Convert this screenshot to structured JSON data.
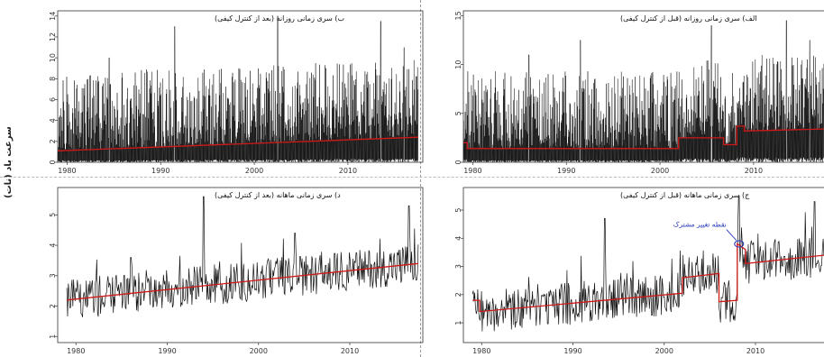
{
  "y_axis_label": "سرعت باد (نات)",
  "chart_data": [
    {
      "id": "b",
      "type": "line",
      "title": "ب) سری زمانی روزانه (بعد از کنترل کیفی)",
      "x_ticks": [
        1980,
        1990,
        2000,
        2010
      ],
      "y_ticks": [
        0,
        2,
        4,
        6,
        8,
        10,
        12,
        14
      ],
      "xlim": [
        1979,
        2018
      ],
      "ylim": [
        0,
        14.5
      ],
      "noise": {
        "base": 1.6,
        "amp": 3.4,
        "max": 14,
        "peaks": [
          [
            1984.5,
            10
          ],
          [
            1991.5,
            13
          ],
          [
            2002.5,
            14
          ],
          [
            2013.5,
            13.5
          ],
          [
            2016,
            11
          ]
        ]
      },
      "trend": {
        "x": [
          1979,
          2017.5
        ],
        "y": [
          1.1,
          2.4
        ]
      }
    },
    {
      "id": "alef",
      "type": "line",
      "title": "الف) سری زمانی روزانه (قبل از کنترل کیفی)",
      "x_ticks": [
        1980,
        1990,
        2000,
        2010
      ],
      "y_ticks": [
        0,
        5,
        10,
        15
      ],
      "xlim": [
        1979,
        2018
      ],
      "ylim": [
        0,
        15.5
      ],
      "noise": {
        "base": 1.6,
        "amp": 3.6,
        "max": 14.5,
        "peaks": [
          [
            1986,
            11
          ],
          [
            1991.5,
            12.5
          ],
          [
            2005.5,
            14
          ],
          [
            2013.5,
            14.5
          ],
          [
            2016,
            12.5
          ]
        ]
      },
      "trend": {
        "x": [
          1979,
          1979.4,
          1979.4,
          2002,
          2002,
          2006.8,
          2006.8,
          2008.2,
          2008.2,
          2009,
          2009,
          2017.5
        ],
        "y": [
          2.0,
          2.0,
          1.4,
          1.4,
          2.5,
          2.5,
          1.8,
          1.8,
          3.7,
          3.7,
          3.2,
          3.4
        ]
      }
    },
    {
      "id": "dal",
      "type": "line",
      "title": "د) سری زمانی ماهانه (بعد از کنترل کیفی)",
      "x_ticks": [
        1980,
        1990,
        2000,
        2010
      ],
      "y_ticks": [
        1,
        2,
        3,
        4,
        5
      ],
      "xlim": [
        1978,
        2018
      ],
      "ylim": [
        0.8,
        5.9
      ],
      "noise": {
        "base": 2.2,
        "amp": 0.7,
        "max": 5.6,
        "peaks": [
          [
            1986,
            3.6
          ],
          [
            1994,
            5.6
          ],
          [
            2004,
            4.4
          ],
          [
            2016.5,
            5.3
          ]
        ]
      },
      "trend": {
        "x": [
          1979,
          2017.5
        ],
        "y": [
          2.2,
          3.4
        ]
      }
    },
    {
      "id": "jim",
      "type": "line",
      "title": "ج) سری زمانی ماهانه (قبل از کنترل کیفی)",
      "x_ticks": [
        1980,
        1990,
        2000,
        2010
      ],
      "y_ticks": [
        1,
        2,
        3,
        4,
        5
      ],
      "xlim": [
        1978,
        2018
      ],
      "ylim": [
        0.3,
        5.8
      ],
      "noise": {
        "base": 1.6,
        "amp": 0.8,
        "max": 5.5,
        "peaks": [
          [
            1993.5,
            4.7
          ],
          [
            2008.2,
            5.5
          ],
          [
            2016.5,
            5.3
          ]
        ]
      },
      "trend": {
        "x": [
          1979,
          1979.8,
          1979.8,
          2002,
          2002,
          2006,
          2006,
          2008,
          2008,
          2008.9,
          2008.9,
          2017.5
        ],
        "y": [
          1.8,
          1.8,
          1.4,
          2.05,
          2.6,
          2.75,
          1.75,
          1.8,
          3.8,
          3.6,
          3.1,
          3.4
        ]
      },
      "annotation": {
        "text": "نقطه تغییر مشترک",
        "x": 2008.2,
        "y": 3.8
      }
    }
  ]
}
